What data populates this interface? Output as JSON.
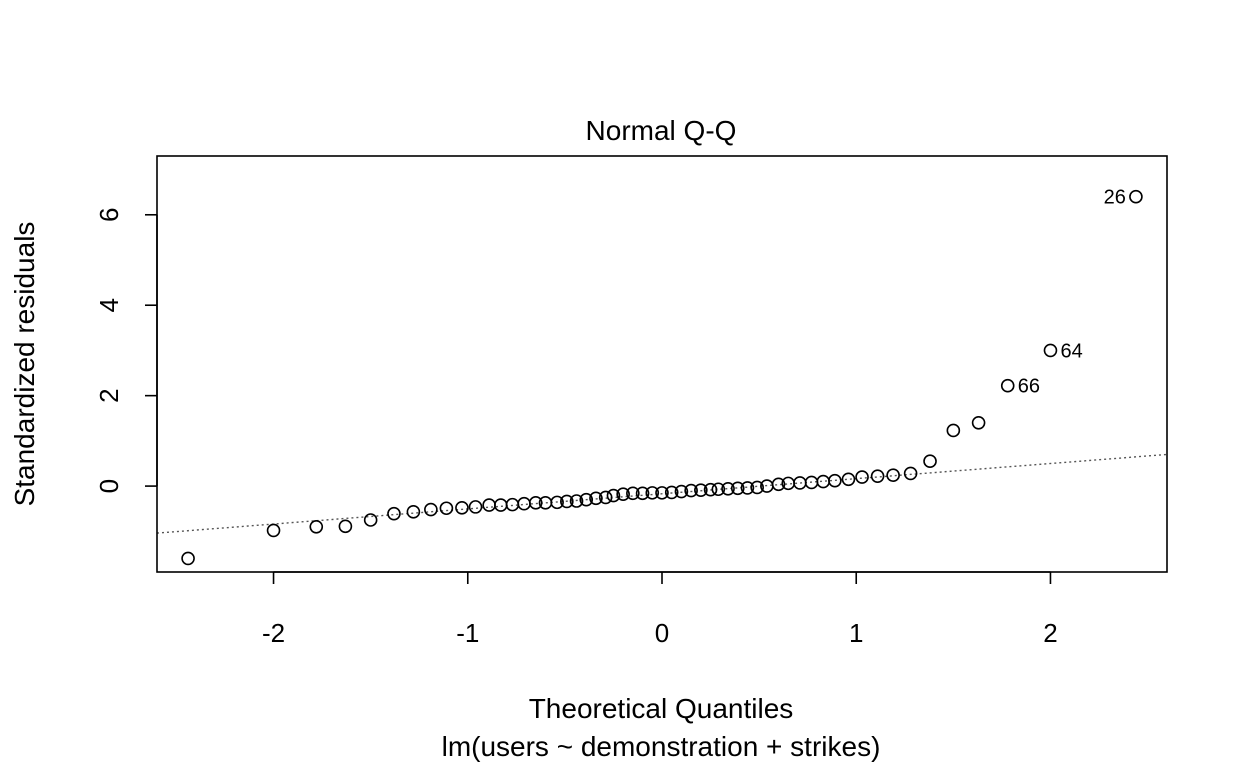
{
  "chart_data": {
    "type": "scatter",
    "title": "Normal Q-Q",
    "xlabel": "Theoretical Quantiles",
    "subtitle": "lm(users ~ demonstration + strikes)",
    "ylabel": "Standardized residuals",
    "xlim": [
      -2.6,
      2.6
    ],
    "ylim": [
      -1.9,
      7.3
    ],
    "x_ticks": [
      -2,
      -1,
      0,
      1,
      2
    ],
    "x_tick_labels": [
      "-2",
      "-1",
      "0",
      "1",
      "2"
    ],
    "y_ticks": [
      0,
      2,
      4,
      6
    ],
    "y_tick_labels": [
      "0",
      "2",
      "4",
      "6"
    ],
    "grid": false,
    "reference_line": {
      "style": "dotted",
      "x": [
        -2.6,
        2.6
      ],
      "y": [
        -1.04,
        0.7
      ]
    },
    "points": [
      {
        "x": -2.44,
        "y": -1.6
      },
      {
        "x": -2.0,
        "y": -0.98
      },
      {
        "x": -1.78,
        "y": -0.9
      },
      {
        "x": -1.63,
        "y": -0.89
      },
      {
        "x": -1.5,
        "y": -0.75
      },
      {
        "x": -1.38,
        "y": -0.61
      },
      {
        "x": -1.28,
        "y": -0.57
      },
      {
        "x": -1.19,
        "y": -0.52
      },
      {
        "x": -1.11,
        "y": -0.49
      },
      {
        "x": -1.03,
        "y": -0.48
      },
      {
        "x": -0.96,
        "y": -0.46
      },
      {
        "x": -0.89,
        "y": -0.42
      },
      {
        "x": -0.83,
        "y": -0.42
      },
      {
        "x": -0.77,
        "y": -0.41
      },
      {
        "x": -0.71,
        "y": -0.39
      },
      {
        "x": -0.65,
        "y": -0.37
      },
      {
        "x": -0.6,
        "y": -0.37
      },
      {
        "x": -0.54,
        "y": -0.36
      },
      {
        "x": -0.49,
        "y": -0.34
      },
      {
        "x": -0.44,
        "y": -0.33
      },
      {
        "x": -0.39,
        "y": -0.3
      },
      {
        "x": -0.34,
        "y": -0.27
      },
      {
        "x": -0.29,
        "y": -0.25
      },
      {
        "x": -0.25,
        "y": -0.21
      },
      {
        "x": -0.2,
        "y": -0.18
      },
      {
        "x": -0.15,
        "y": -0.16
      },
      {
        "x": -0.1,
        "y": -0.16
      },
      {
        "x": -0.05,
        "y": -0.15
      },
      {
        "x": 0.0,
        "y": -0.15
      },
      {
        "x": 0.05,
        "y": -0.14
      },
      {
        "x": 0.1,
        "y": -0.12
      },
      {
        "x": 0.15,
        "y": -0.1
      },
      {
        "x": 0.2,
        "y": -0.09
      },
      {
        "x": 0.25,
        "y": -0.08
      },
      {
        "x": 0.29,
        "y": -0.07
      },
      {
        "x": 0.34,
        "y": -0.06
      },
      {
        "x": 0.39,
        "y": -0.05
      },
      {
        "x": 0.44,
        "y": -0.04
      },
      {
        "x": 0.49,
        "y": -0.03
      },
      {
        "x": 0.54,
        "y": 0.0
      },
      {
        "x": 0.6,
        "y": 0.04
      },
      {
        "x": 0.65,
        "y": 0.06
      },
      {
        "x": 0.71,
        "y": 0.07
      },
      {
        "x": 0.77,
        "y": 0.08
      },
      {
        "x": 0.83,
        "y": 0.1
      },
      {
        "x": 0.89,
        "y": 0.12
      },
      {
        "x": 0.96,
        "y": 0.15
      },
      {
        "x": 1.03,
        "y": 0.2
      },
      {
        "x": 1.11,
        "y": 0.22
      },
      {
        "x": 1.19,
        "y": 0.24
      },
      {
        "x": 1.28,
        "y": 0.28
      },
      {
        "x": 1.38,
        "y": 0.55
      },
      {
        "x": 1.5,
        "y": 1.23
      },
      {
        "x": 1.63,
        "y": 1.4
      },
      {
        "x": 1.78,
        "y": 2.22,
        "label": "66"
      },
      {
        "x": 2.0,
        "y": 3.0,
        "label": "64"
      },
      {
        "x": 2.44,
        "y": 6.4,
        "label": "26"
      }
    ]
  }
}
